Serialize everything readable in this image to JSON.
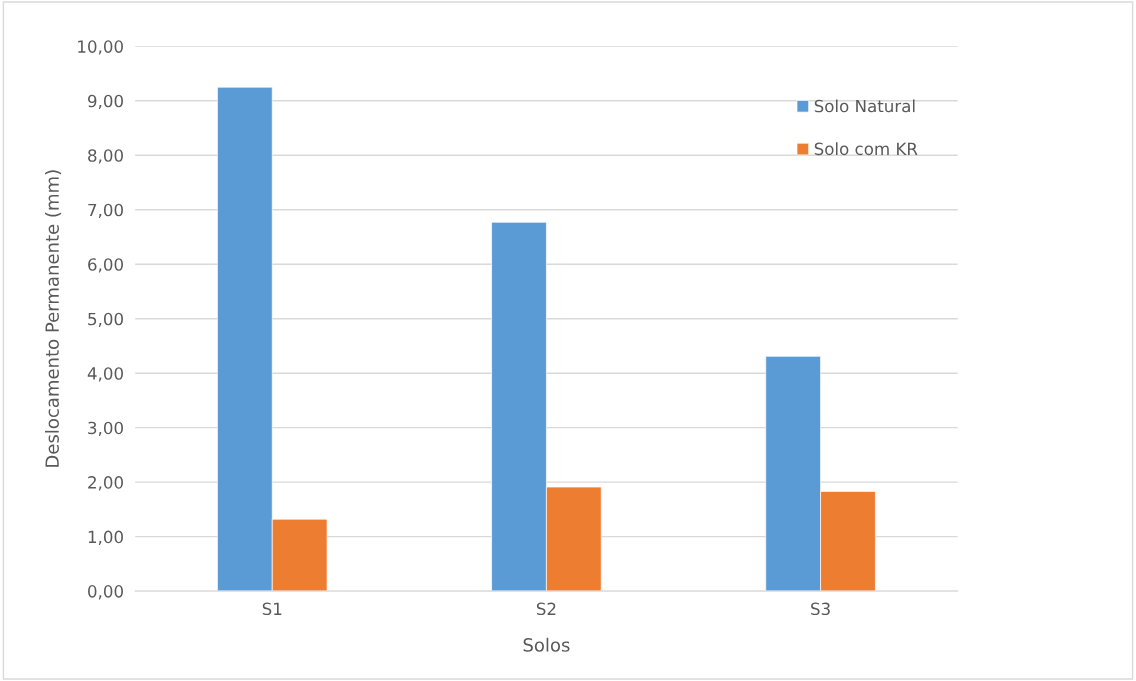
{
  "chart_data": {
    "type": "bar",
    "xlabel": "Solos",
    "ylabel": "Deslocamento Permanente (mm)",
    "categories": [
      "S1",
      "S2",
      "S3"
    ],
    "series": [
      {
        "name": "Solo Natural",
        "color": "#5b9bd5",
        "values": [
          9.25,
          6.77,
          4.31
        ]
      },
      {
        "name": "Solo com KR",
        "color": "#ed7d31",
        "values": [
          1.32,
          1.91,
          1.83
        ]
      }
    ],
    "ylim": [
      0,
      10
    ],
    "yticks": [
      {
        "value": 0,
        "label": "0,00"
      },
      {
        "value": 1,
        "label": "1,00"
      },
      {
        "value": 2,
        "label": "2,00"
      },
      {
        "value": 3,
        "label": "3,00"
      },
      {
        "value": 4,
        "label": "4,00"
      },
      {
        "value": 5,
        "label": "5,00"
      },
      {
        "value": 6,
        "label": "6,00"
      },
      {
        "value": 7,
        "label": "7,00"
      },
      {
        "value": 8,
        "label": "8,00"
      },
      {
        "value": 9,
        "label": "9,00"
      },
      {
        "value": 10,
        "label": "10,00"
      }
    ],
    "grid": "y",
    "legend": "top right"
  }
}
